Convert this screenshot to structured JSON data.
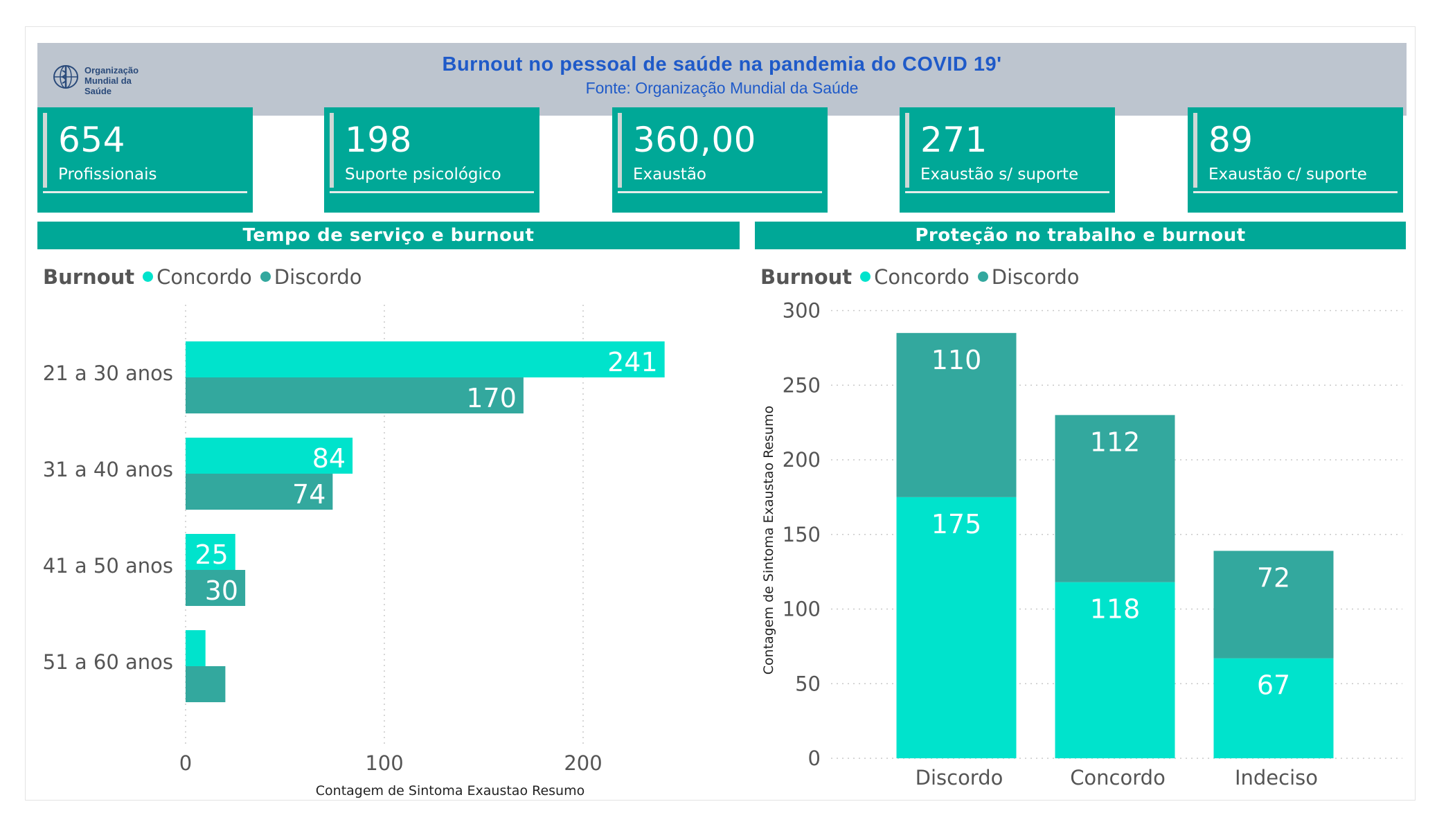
{
  "header": {
    "title": "Burnout no pessoal de saúde na pandemia do COVID 19'",
    "subtitle": "Fonte: Organização Mundial da Saúde",
    "logo_line1": "Organização",
    "logo_line2": "Mundial da Saúde"
  },
  "kpis": [
    {
      "value": "654",
      "label": "Profissionais"
    },
    {
      "value": "198",
      "label": "Suporte psicológico"
    },
    {
      "value": "360,00",
      "label": "Exaustão"
    },
    {
      "value": "271",
      "label": "Exaustão s/ suporte"
    },
    {
      "value": "89",
      "label": "Exaustão c/ suporte"
    }
  ],
  "colors": {
    "concordo": "#00e3cc",
    "discordo": "#33a89e",
    "accent": "#00a897",
    "header_bg": "#bdc5cf",
    "title": "#1f5ac8"
  },
  "chart_data": [
    {
      "section_title": "Tempo de serviço e burnout",
      "type": "bar",
      "orientation": "horizontal",
      "legend_title": "Burnout",
      "categories": [
        "21 a 30 anos",
        "31 a 40 anos",
        "41 a 50 anos",
        "51 a 60 anos"
      ],
      "series": [
        {
          "name": "Concordo",
          "values": [
            241,
            84,
            25,
            10
          ],
          "labels": [
            "241",
            "84",
            "25",
            ""
          ]
        },
        {
          "name": "Discordo",
          "values": [
            170,
            74,
            30,
            20
          ],
          "labels": [
            "170",
            "74",
            "30",
            ""
          ]
        }
      ],
      "xlabel": "Contagem de Sintoma Exaustao Resumo",
      "ylabel": "",
      "xlim": [
        0,
        265
      ],
      "xticks": [
        0,
        100,
        200
      ],
      "grid": true,
      "legend_position": "top-left"
    },
    {
      "section_title": "Proteção no trabalho e burnout",
      "type": "bar",
      "stacked": true,
      "legend_title": "Burnout",
      "categories": [
        "Discordo",
        "Concordo",
        "Indeciso"
      ],
      "series": [
        {
          "name": "Concordo",
          "values": [
            175,
            118,
            67
          ]
        },
        {
          "name": "Discordo",
          "values": [
            110,
            112,
            72
          ]
        }
      ],
      "xlabel": "",
      "ylabel": "Contagem de Sintoma Exaustao Resumo",
      "ylim": [
        0,
        300
      ],
      "yticks": [
        0,
        50,
        100,
        150,
        200,
        250,
        300
      ],
      "grid": true,
      "legend_position": "top-left"
    }
  ]
}
